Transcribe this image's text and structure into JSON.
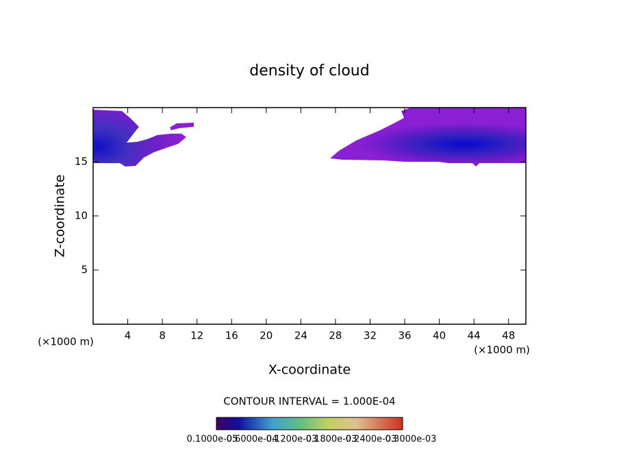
{
  "chart_data": {
    "type": "contour",
    "title": "density of cloud",
    "x_label": "X-coordinate",
    "y_label": "Z-coordinate",
    "x_unit": "(×1000 m)",
    "y_unit": "(×1000 m)",
    "xlim": [
      0,
      50
    ],
    "ylim": [
      0,
      20
    ],
    "xticks": [
      4,
      8,
      12,
      16,
      20,
      24,
      28,
      32,
      36,
      40,
      44,
      48
    ],
    "yticks": [
      5,
      10,
      15
    ],
    "contour_interval": "CONTOUR INTERVAL = 1.000E-04",
    "colorbar_labels": [
      "0.1000e-05",
      "0.6000e-04",
      "0.1200e-03",
      "0.1800e-03",
      "0.2400e-03",
      "0.3000e-03"
    ]
  }
}
